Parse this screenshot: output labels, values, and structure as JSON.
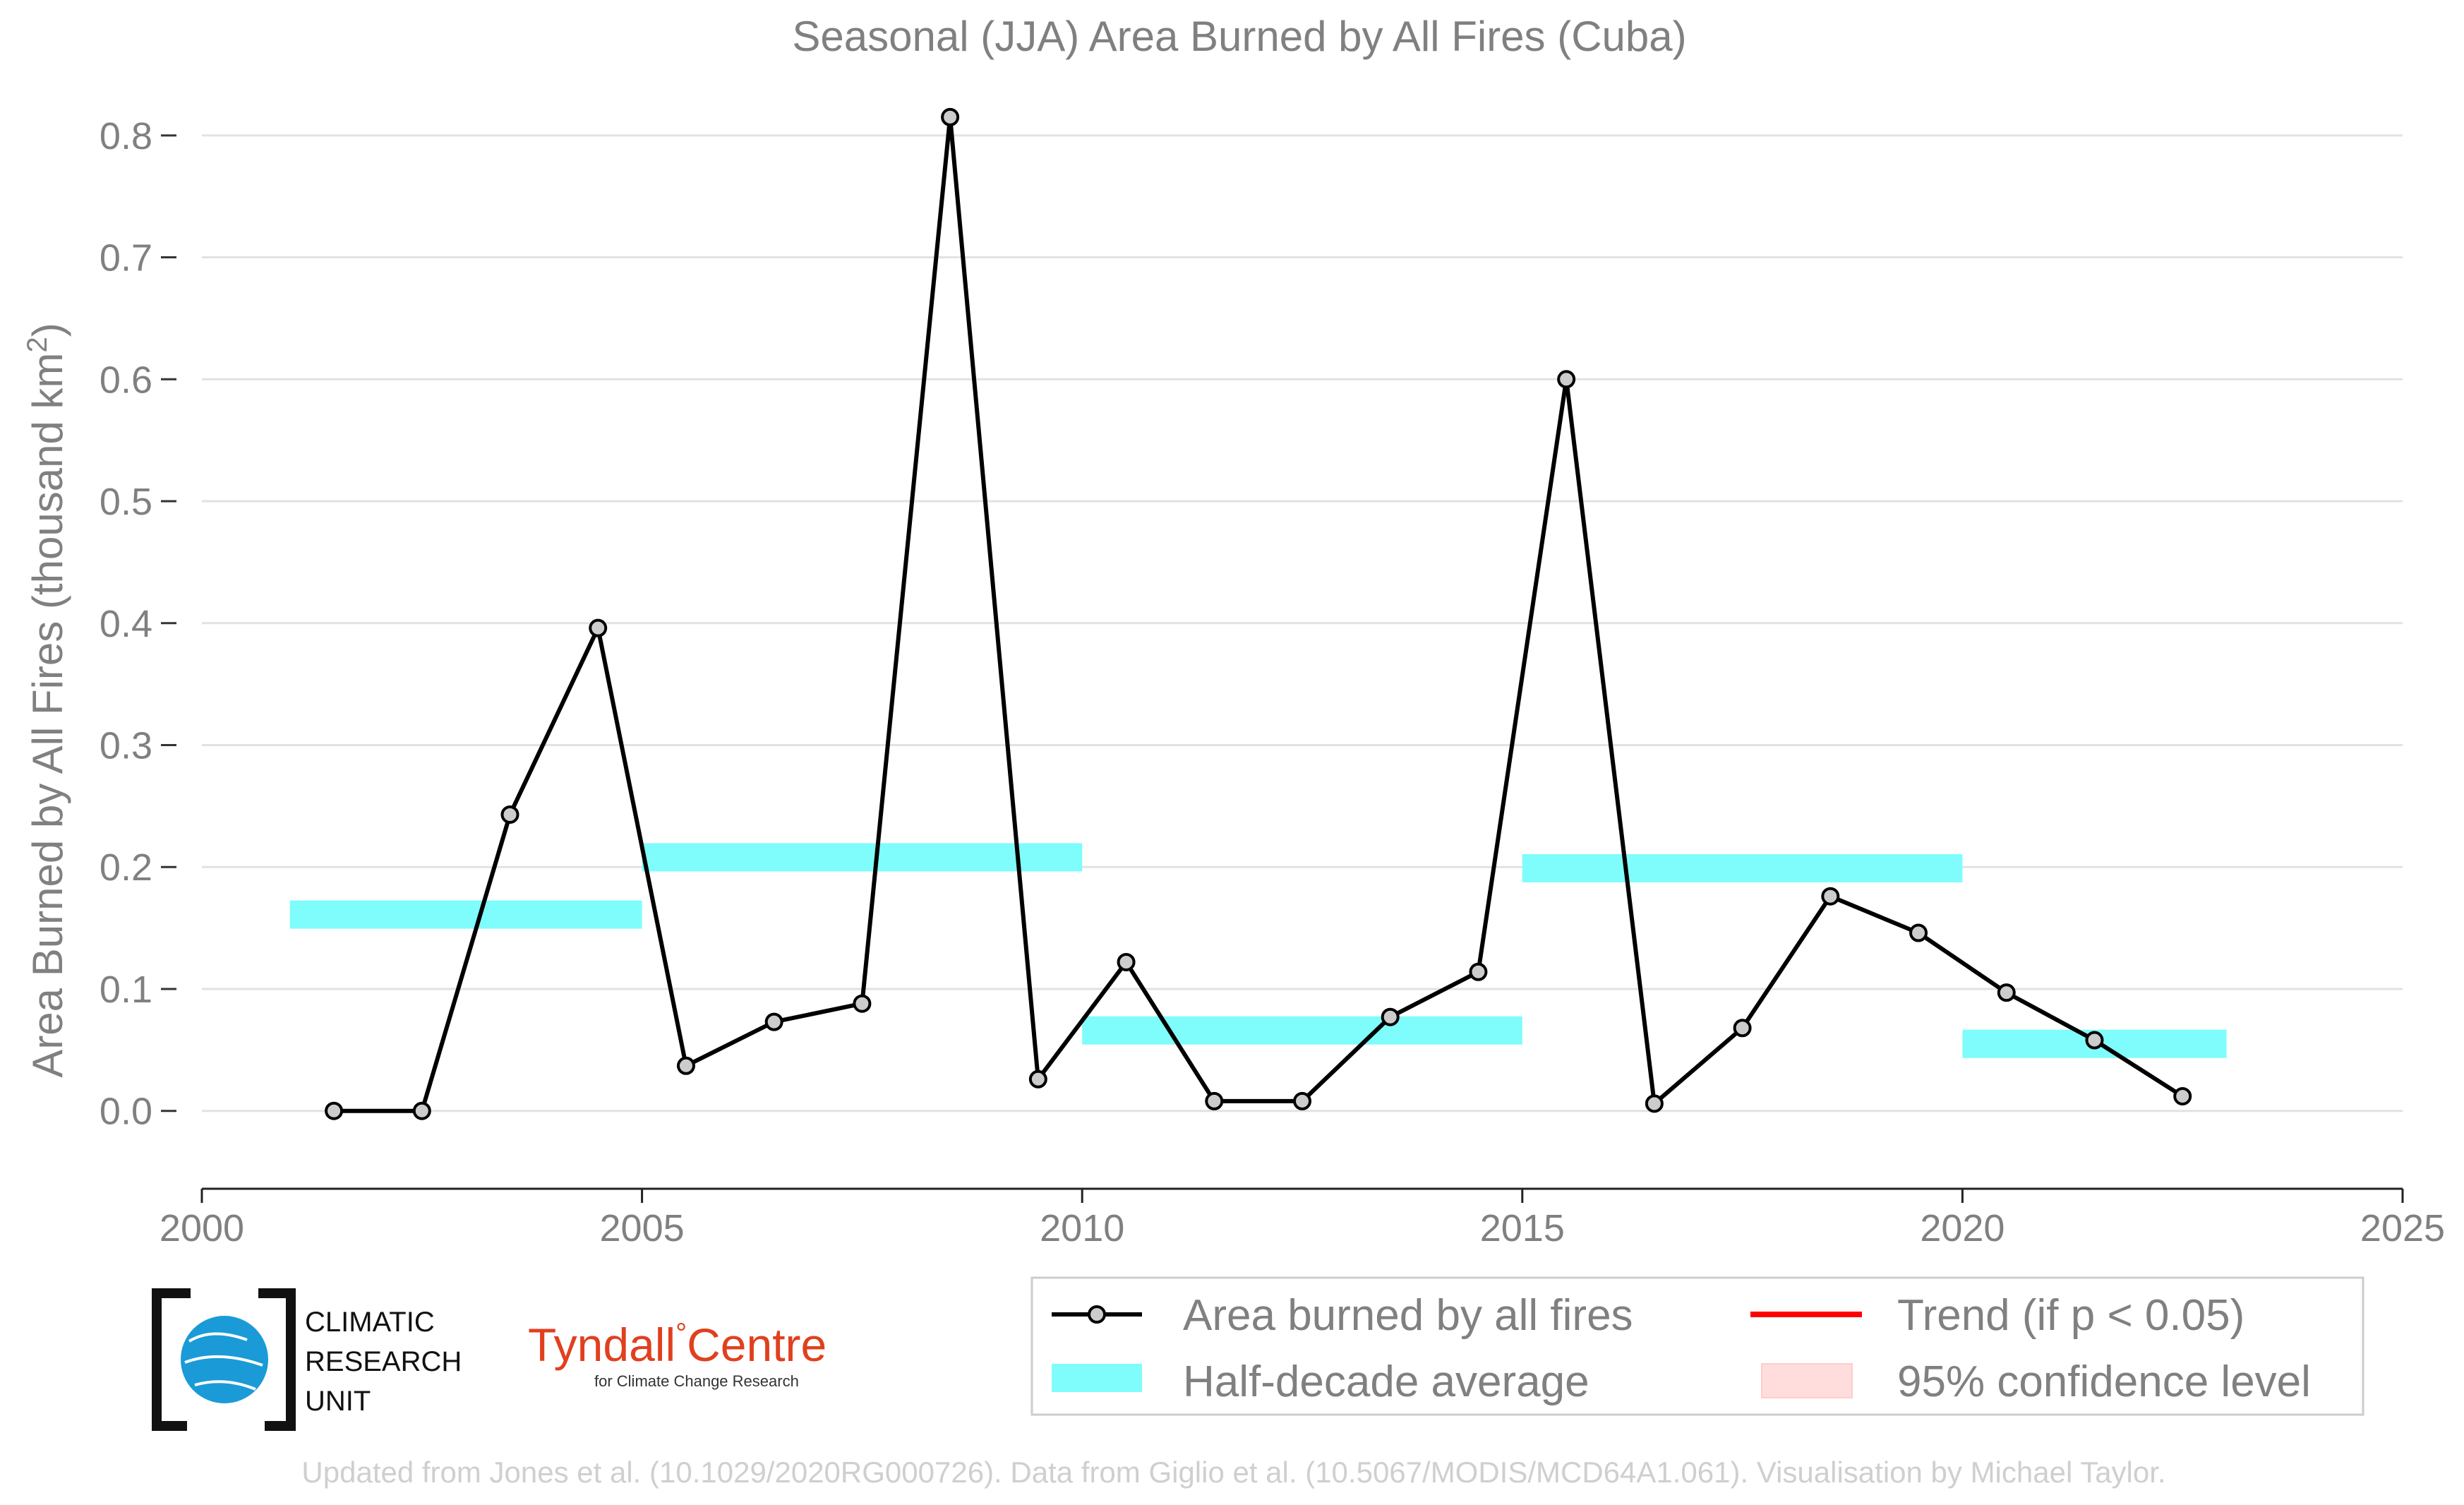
{
  "chart_data": {
    "type": "line",
    "title": "Seasonal (JJA) Area Burned by All Fires (Cuba)",
    "xlabel": "",
    "ylabel": "Area Burned by All Fires (thousand km",
    "ylabel_superscript": "2",
    "ylabel_suffix": ")",
    "xlim": [
      2000,
      2025
    ],
    "ylim": [
      -0.065,
      0.83
    ],
    "x_ticks": [
      2000,
      2005,
      2010,
      2015,
      2020,
      2025
    ],
    "x_tick_labels": [
      "2000",
      "2005",
      "2010",
      "2015",
      "2020",
      "2025"
    ],
    "y_ticks": [
      0.0,
      0.1,
      0.2,
      0.3,
      0.4,
      0.5,
      0.6,
      0.7,
      0.8
    ],
    "y_tick_labels": [
      "0.0",
      "0.1",
      "0.2",
      "0.3",
      "0.4",
      "0.5",
      "0.6",
      "0.7",
      "0.8"
    ],
    "grid": "horizontal",
    "series": [
      {
        "name": "Area burned by all fires",
        "color": "#000000",
        "marker_fill": "#cccccc",
        "x": [
          2001.5,
          2002.5,
          2003.5,
          2004.5,
          2005.5,
          2006.5,
          2007.5,
          2008.5,
          2009.5,
          2010.5,
          2011.5,
          2012.5,
          2013.5,
          2014.5,
          2015.5,
          2016.5,
          2017.5,
          2018.5,
          2019.5,
          2020.5,
          2021.5,
          2022.5
        ],
        "y": [
          0.0,
          0.0,
          0.243,
          0.396,
          0.037,
          0.073,
          0.088,
          0.815,
          0.026,
          0.122,
          0.008,
          0.008,
          0.077,
          0.114,
          0.6,
          0.006,
          0.068,
          0.176,
          0.146,
          0.097,
          0.058,
          0.012
        ]
      }
    ],
    "half_decade_average": {
      "name": "Half-decade average",
      "color": "#7ffcfc",
      "segments": [
        {
          "x_start": 2001,
          "x_end": 2005,
          "y": 0.161
        },
        {
          "x_start": 2005,
          "x_end": 2010,
          "y": 0.208
        },
        {
          "x_start": 2010,
          "x_end": 2015,
          "y": 0.066
        },
        {
          "x_start": 2015,
          "x_end": 2020,
          "y": 0.199
        },
        {
          "x_start": 2020,
          "x_end": 2023,
          "y": 0.055
        }
      ]
    },
    "legend": {
      "placement": "bottom-right",
      "entries": [
        {
          "label": "Area burned by all fires",
          "kind": "line-marker",
          "color": "#000000"
        },
        {
          "label": "Trend (if p < 0.05)",
          "kind": "line",
          "color": "#ff0000"
        },
        {
          "label": "Half-decade average",
          "kind": "band",
          "color": "#7ffcfc"
        },
        {
          "label": "95% confidence level",
          "kind": "band",
          "color": "#ffdddd"
        }
      ]
    }
  },
  "logos": {
    "cru": {
      "line1": "CLIMATIC",
      "line2": "RESEARCH",
      "line3": "UNIT",
      "globe_color": "#1a9bd7"
    },
    "tyndall": {
      "main_left": "Tyndall",
      "degree": "°",
      "main_right": "Centre",
      "sub": "for Climate Change Research",
      "color": "#e0401f"
    }
  },
  "footer": "Updated from Jones et al. (10.1029/2020RG000726). Data from Giglio et al. (10.5067/MODIS/MCD64A1.061). Visualisation by Michael Taylor."
}
